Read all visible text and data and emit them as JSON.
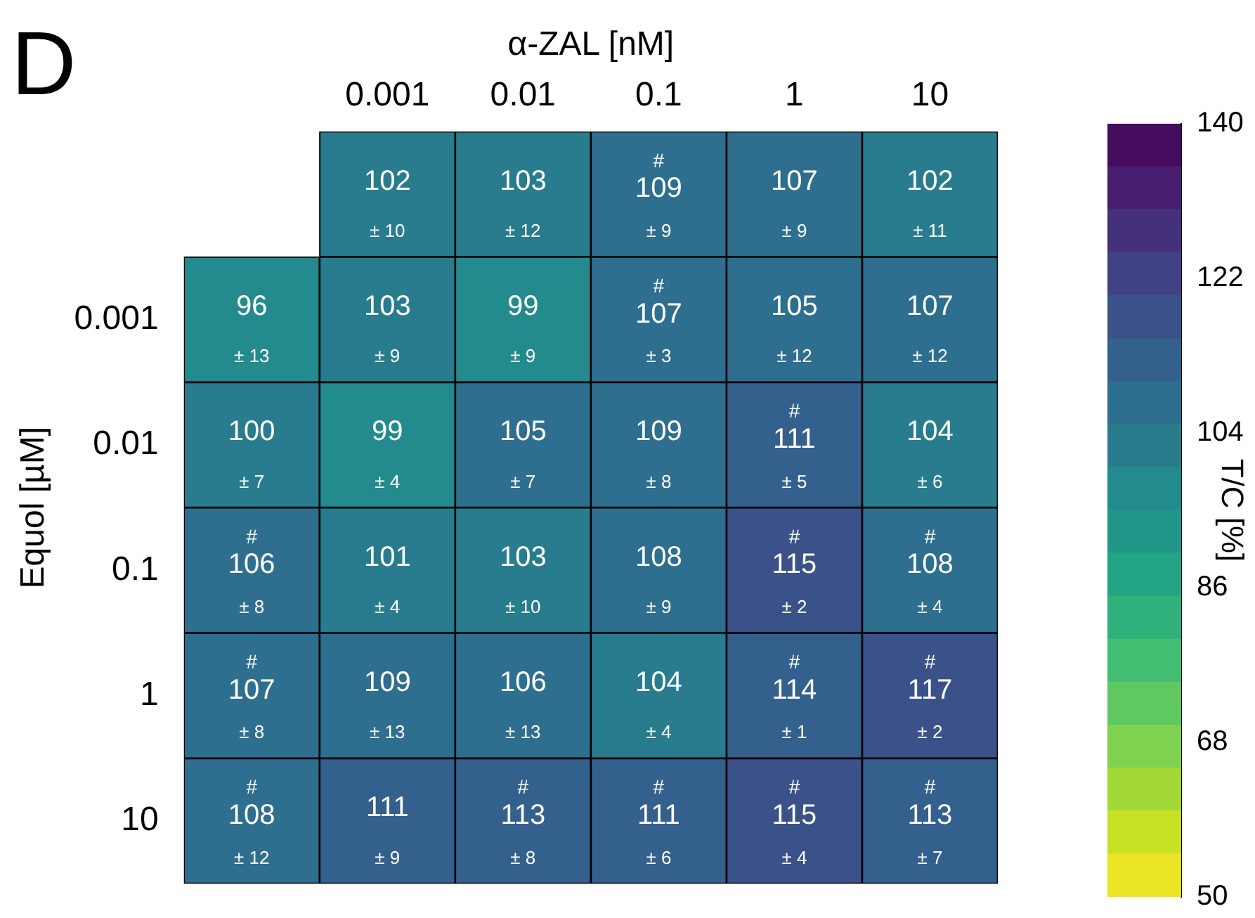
{
  "chart_data": {
    "type": "heatmap",
    "title": "D",
    "xlabel": "α-ZAL [nM]",
    "ylabel": "Equol [µM]",
    "clabel": "T/C [%]",
    "categories": [
      null,
      "0.001",
      "0.01",
      "0.1",
      "1",
      "10"
    ],
    "y_categories": [
      null,
      "0.001",
      "0.01",
      "0.1",
      "1",
      "10"
    ],
    "cells": [
      [
        null,
        102,
        103,
        109,
        107,
        102
      ],
      [
        96,
        103,
        99,
        107,
        105,
        107
      ],
      [
        100,
        99,
        105,
        109,
        111,
        104
      ],
      [
        106,
        101,
        103,
        108,
        115,
        108
      ],
      [
        107,
        109,
        106,
        104,
        114,
        117
      ],
      [
        108,
        111,
        113,
        111,
        115,
        113
      ]
    ],
    "cell_labels": [
      [
        null,
        "102\n± 10",
        "103\n± 12",
        "#\n109\n± 9",
        "107\n± 9",
        "102\n± 11"
      ],
      [
        "96\n± 13",
        "103\n± 9",
        "99\n± 9",
        "#\n107\n± 3",
        "105\n± 12",
        "107\n± 12"
      ],
      [
        "100\n± 7",
        "99\n± 4",
        "105\n± 7",
        "109\n± 8",
        "#\n111\n± 5",
        "104\n± 6"
      ],
      [
        "#\n106\n± 8",
        "101\n± 4",
        "103\n± 10",
        "108\n± 9",
        "#\n115\n± 2",
        "#\n108\n± 4"
      ],
      [
        "#\n107\n± 8",
        "109\n± 13",
        "106\n± 13",
        "104\n± 4",
        "#\n114\n± 1",
        "#\n117\n± 2"
      ],
      [
        "#\n108\n± 12",
        "111\n± 9",
        "#\n113\n± 8",
        "#\n111\n± 6",
        "#\n115\n± 4",
        "#\n113\n± 7"
      ]
    ],
    "clim": [
      50,
      140
    ],
    "cticks": [
      50,
      68,
      86,
      104,
      122,
      140
    ]
  }
}
